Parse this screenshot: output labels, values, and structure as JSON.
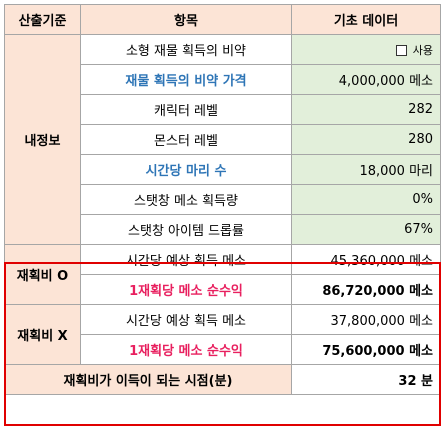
{
  "header": {
    "col1": "산출기준",
    "col2": "항목",
    "col3": "기초 데이터"
  },
  "base": {
    "category": "내정보",
    "rows": [
      {
        "label": "소형 재물 획득의 비약",
        "value": "사용",
        "type": "checkbox"
      },
      {
        "label": "재물 획득의 비약 가격",
        "value": "4,000,000 메소",
        "type": "text"
      },
      {
        "label": "캐릭터 레벨",
        "value": "282",
        "type": "text"
      },
      {
        "label": "몬스터 레벨",
        "value": "280",
        "type": "text"
      },
      {
        "label": "시간당 마리 수",
        "value": "18,000 마리",
        "type": "text"
      },
      {
        "label": "스탯창 메소 획득량",
        "value": "0%",
        "type": "text"
      },
      {
        "label": "스탯창 아이템 드롭률",
        "value": "67%",
        "type": "text"
      }
    ]
  },
  "with_refarm": {
    "category": "재획비 O",
    "rows": [
      {
        "label": "시간당 예상 획득 메소",
        "value": "45,360,000 메소"
      },
      {
        "label": "1재획당 메소 순수익",
        "value": "86,720,000 메소"
      }
    ]
  },
  "without_refarm": {
    "category": "재획비 X",
    "rows": [
      {
        "label": "시간당 예상 획득 메소",
        "value": "37,800,000 메소"
      },
      {
        "label": "1재획당 메소 순수익",
        "value": "75,600,000 메소"
      }
    ]
  },
  "result": {
    "label": "재획비가 이득이 되는 시점(분)",
    "value": "32 분"
  },
  "colors": {
    "header_bg": "#fce4d6",
    "value_bg": "#e2efda",
    "border": "#a6a6a6",
    "highlight_blue": "#2e75b6",
    "highlight_pink": "#e8205f",
    "frame_red": "#e00000"
  }
}
